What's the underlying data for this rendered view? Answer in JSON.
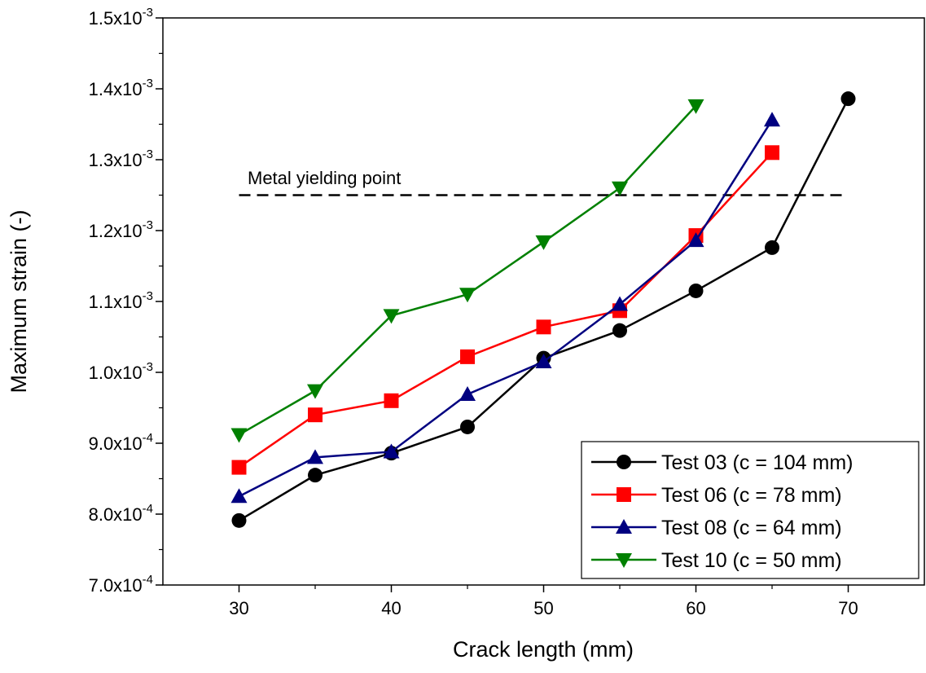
{
  "chart_data": {
    "type": "line",
    "xlabel": "Crack length (mm)",
    "ylabel": "Maximum strain (-)",
    "xlim": [
      25,
      75
    ],
    "ylim": [
      0.0007,
      0.0015
    ],
    "x_ticks": [
      30,
      40,
      50,
      60,
      70
    ],
    "x_tick_labels": [
      "30",
      "40",
      "50",
      "60",
      "70"
    ],
    "y_ticks": [
      0.0007,
      0.0008,
      0.0009,
      0.001,
      0.0011,
      0.0012,
      0.0013,
      0.0014,
      0.0015
    ],
    "y_tick_labels": [
      {
        "mantissa": "7.0x10",
        "exp": "-4"
      },
      {
        "mantissa": "8.0x10",
        "exp": "-4"
      },
      {
        "mantissa": "9.0x10",
        "exp": "-4"
      },
      {
        "mantissa": "1.0x10",
        "exp": "-3"
      },
      {
        "mantissa": "1.1x10",
        "exp": "-3"
      },
      {
        "mantissa": "1.2x10",
        "exp": "-3"
      },
      {
        "mantissa": "1.3x10",
        "exp": "-3"
      },
      {
        "mantissa": "1.4x10",
        "exp": "-3"
      },
      {
        "mantissa": "1.5x10",
        "exp": "-3"
      }
    ],
    "grid": false,
    "legend_position": "bottom-right",
    "series": [
      {
        "name": "Test 03 (c = 104 mm)",
        "color": "#000000",
        "marker": "circle",
        "x": [
          30,
          35,
          40,
          45,
          50,
          55,
          60,
          65,
          70
        ],
        "y": [
          0.000791,
          0.000855,
          0.000886,
          0.000923,
          0.00102,
          0.001059,
          0.001115,
          0.001176,
          0.001386
        ]
      },
      {
        "name": "Test 06 (c = 78 mm)",
        "color": "#ff0000",
        "marker": "square",
        "x": [
          30,
          35,
          40,
          45,
          50,
          55,
          60,
          65
        ],
        "y": [
          0.000866,
          0.00094,
          0.00096,
          0.001022,
          0.001064,
          0.001087,
          0.001193,
          0.00131
        ]
      },
      {
        "name": "Test 08 (c = 64 mm)",
        "color": "#000080",
        "marker": "triangle-up",
        "x": [
          30,
          35,
          40,
          45,
          50,
          55,
          60,
          65
        ],
        "y": [
          0.000825,
          0.00088,
          0.000888,
          0.000969,
          0.001015,
          0.001096,
          0.001186,
          0.001356
        ]
      },
      {
        "name": "Test 10 (c = 50 mm)",
        "color": "#008000",
        "marker": "triangle-down",
        "x": [
          30,
          35,
          40,
          45,
          50,
          55,
          60
        ],
        "y": [
          0.000912,
          0.000974,
          0.00108,
          0.00111,
          0.001184,
          0.00126,
          0.001376
        ]
      }
    ],
    "reference_line": {
      "label": "Metal yielding point",
      "y": 0.00125,
      "x_start": 30,
      "x_end": 70,
      "style": "dashed",
      "color": "#000000"
    }
  }
}
